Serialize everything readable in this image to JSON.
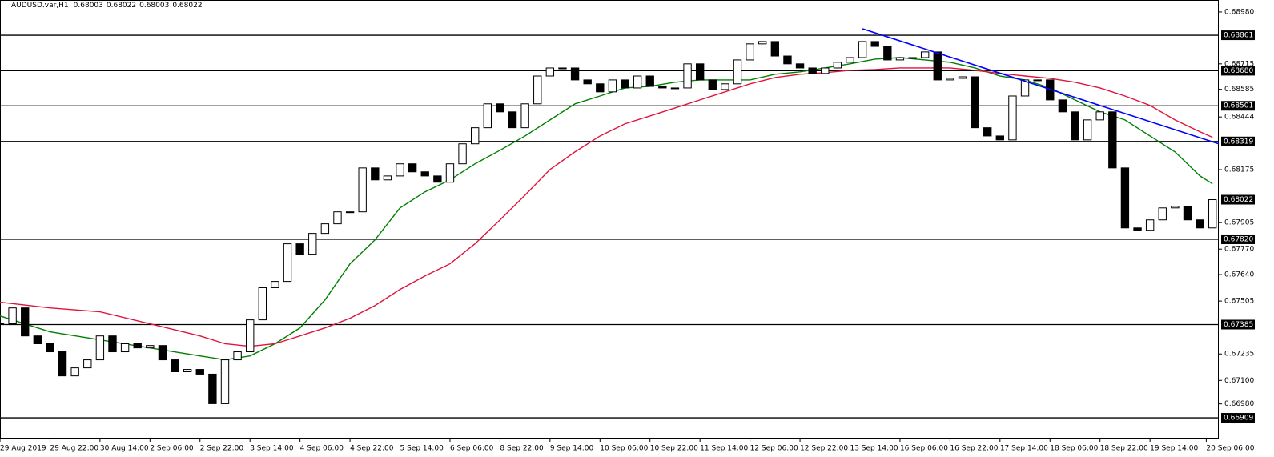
{
  "chart_data": {
    "type": "candlestick",
    "title": "AUDUSD.var,H1",
    "header_values": [
      0.68003,
      0.68022,
      0.68003,
      0.68022
    ],
    "xlim": [
      0,
      390
    ],
    "ylim": [
      0.66803,
      0.69041
    ],
    "yticks": [
      {
        "value": 0.6898,
        "label": "0.68980"
      },
      0.68715,
      0.68585,
      0.68444,
      0.68175,
      0.67905,
      {
        "value": 0.6777,
        "label": "0.67770"
      },
      {
        "value": 0.6764,
        "label": "0.67640"
      },
      0.67505,
      0.67235,
      {
        "value": 0.671,
        "label": "0.67100"
      },
      {
        "value": 0.6698,
        "label": "0.66980"
      }
    ],
    "xticks": [
      {
        "value": 0,
        "label": "29 Aug 2019"
      },
      {
        "value": 16,
        "label": "29 Aug 22:00"
      },
      {
        "value": 32,
        "label": "30 Aug 14:00"
      },
      {
        "value": 48,
        "label": "2 Sep 06:00"
      },
      {
        "value": 64,
        "label": "2 Sep 22:00"
      },
      {
        "value": 80,
        "label": "3 Sep 14:00"
      },
      {
        "value": 96,
        "label": "4 Sep 06:00"
      },
      {
        "value": 112,
        "label": "4 Sep 22:00"
      },
      {
        "value": 128,
        "label": "5 Sep 14:00"
      },
      {
        "value": 144,
        "label": "6 Sep 06:00"
      },
      {
        "value": 160,
        "label": "8 Sep 22:00"
      },
      {
        "value": 176,
        "label": "9 Sep 14:00"
      },
      {
        "value": 192,
        "label": "10 Sep 06:00"
      },
      {
        "value": 208,
        "label": "10 Sep 22:00"
      },
      {
        "value": 224,
        "label": "11 Sep 14:00"
      },
      {
        "value": 240,
        "label": "12 Sep 06:00"
      },
      {
        "value": 256,
        "label": "12 Sep 22:00"
      },
      {
        "value": 272,
        "label": "13 Sep 14:00"
      },
      {
        "value": 288,
        "label": "16 Sep 06:00"
      },
      {
        "value": 304,
        "label": "16 Sep 22:00"
      },
      {
        "value": 320,
        "label": "17 Sep 14:00"
      },
      {
        "value": 336,
        "label": "18 Sep 06:00"
      },
      {
        "value": 352,
        "label": "18 Sep 22:00"
      },
      {
        "value": 368,
        "label": "19 Sep 14:00"
      },
      {
        "value": 386,
        "label": "20 Sep 06:00"
      }
    ],
    "x": [
      0,
      4,
      8,
      12,
      16,
      20,
      24,
      28,
      32,
      36,
      40,
      44,
      48,
      52,
      56,
      60,
      64,
      68,
      72,
      76,
      80,
      84,
      88,
      92,
      96,
      100,
      104,
      108,
      112,
      116,
      120,
      124,
      128,
      132,
      136,
      140,
      144,
      148,
      152,
      156,
      160,
      164,
      168,
      172,
      176,
      180,
      184,
      188,
      192,
      196,
      200,
      204,
      208,
      212,
      216,
      220,
      224,
      228,
      232,
      236,
      240,
      244,
      248,
      252,
      256,
      260,
      264,
      268,
      272,
      276,
      280,
      284,
      288,
      292,
      296,
      300,
      304,
      308,
      312,
      316,
      320,
      324,
      328,
      332,
      336,
      340,
      344,
      348,
      352,
      356,
      360,
      364,
      368,
      372,
      376,
      380,
      384,
      388
    ],
    "closes": [
      0.67389,
      0.6747,
      0.67327,
      0.67287,
      0.67246,
      0.67123,
      0.67164,
      0.67205,
      0.67327,
      0.67246,
      0.67287,
      0.67266,
      0.67278,
      0.67205,
      0.67144,
      0.67156,
      0.67132,
      0.66981,
      0.67205,
      0.67246,
      0.67409,
      0.67573,
      0.67605,
      0.67797,
      0.67744,
      0.6785,
      0.67899,
      0.6796,
      0.6796,
      0.68184,
      0.68123,
      0.68143,
      0.68205,
      0.68164,
      0.68143,
      0.68111,
      0.68205,
      0.68307,
      0.68389,
      0.68511,
      0.6847,
      0.68389,
      0.68511,
      0.68653,
      0.68694,
      0.68694,
      0.68633,
      0.68613,
      0.68572,
      0.68633,
      0.68592,
      0.68653,
      0.686,
      0.68592,
      0.68592,
      0.68715,
      0.68633,
      0.68584,
      0.68613,
      0.68735,
      0.68817,
      0.68829,
      0.68755,
      0.68715,
      0.68694,
      0.68666,
      0.68694,
      0.68723,
      0.68747,
      0.68829,
      0.68804,
      0.68735,
      0.68747,
      0.68747,
      0.68776,
      0.68633,
      0.68641,
      0.68649,
      0.68389,
      0.68347,
      0.68327,
      0.68551,
      0.68633,
      0.68633,
      0.68531,
      0.6847,
      0.68327,
      0.68429,
      0.6847,
      0.68184,
      0.67878,
      0.67866,
      0.67919,
      0.6798,
      0.67988,
      0.67919,
      0.67878,
      0.68022
    ],
    "ma_x": [
      0,
      16,
      32,
      48,
      64,
      72,
      80,
      88,
      96,
      104,
      112,
      120,
      128,
      136,
      144,
      152,
      160,
      168,
      176,
      184,
      192,
      200,
      208,
      216,
      224,
      232,
      240,
      248,
      256,
      264,
      272,
      280,
      288,
      296,
      304,
      312,
      320,
      328,
      336,
      344,
      352,
      360,
      368,
      376,
      384,
      388
    ],
    "moving_averages": [
      {
        "color": "#008000",
        "values": [
          0.67429,
          0.67348,
          0.67307,
          0.67266,
          0.67225,
          0.67205,
          0.67225,
          0.67287,
          0.67368,
          0.67511,
          0.67695,
          0.67817,
          0.6798,
          0.68062,
          0.68123,
          0.68205,
          0.68274,
          0.68347,
          0.68429,
          0.68511,
          0.68551,
          0.68592,
          0.686,
          0.68621,
          0.68633,
          0.68633,
          0.68633,
          0.68662,
          0.68674,
          0.68694,
          0.68715,
          0.68739,
          0.68747,
          0.68735,
          0.68723,
          0.68694,
          0.68653,
          0.68633,
          0.68592,
          0.68531,
          0.6847,
          0.68429,
          0.68347,
          0.68266,
          0.68143,
          0.68103
        ]
      },
      {
        "color": "#e0143c",
        "values": [
          0.67499,
          0.6747,
          0.6745,
          0.67389,
          0.67327,
          0.67287,
          0.67274,
          0.67287,
          0.67327,
          0.67368,
          0.67417,
          0.67482,
          0.67564,
          0.67633,
          0.67695,
          0.67797,
          0.67919,
          0.68045,
          0.68176,
          0.68266,
          0.68347,
          0.68409,
          0.68449,
          0.6849,
          0.68531,
          0.68572,
          0.68613,
          0.68645,
          0.68662,
          0.6867,
          0.68682,
          0.68686,
          0.68694,
          0.68694,
          0.68694,
          0.68682,
          0.68666,
          0.68653,
          0.68641,
          0.68621,
          0.68592,
          0.68551,
          0.68503,
          0.68429,
          0.68368,
          0.6834
        ]
      }
    ],
    "trendline": {
      "color": "#0000ff",
      "x": [
        276,
        390
      ],
      "values": [
        0.68894,
        0.68307
      ]
    },
    "levels": [
      0.68861,
      {
        "value": 0.6868,
        "label": "0.68680"
      },
      0.68501,
      0.68319,
      {
        "value": 0.6782,
        "label": "0.67820"
      },
      0.67385,
      0.66909
    ],
    "current_price": 0.68022
  }
}
